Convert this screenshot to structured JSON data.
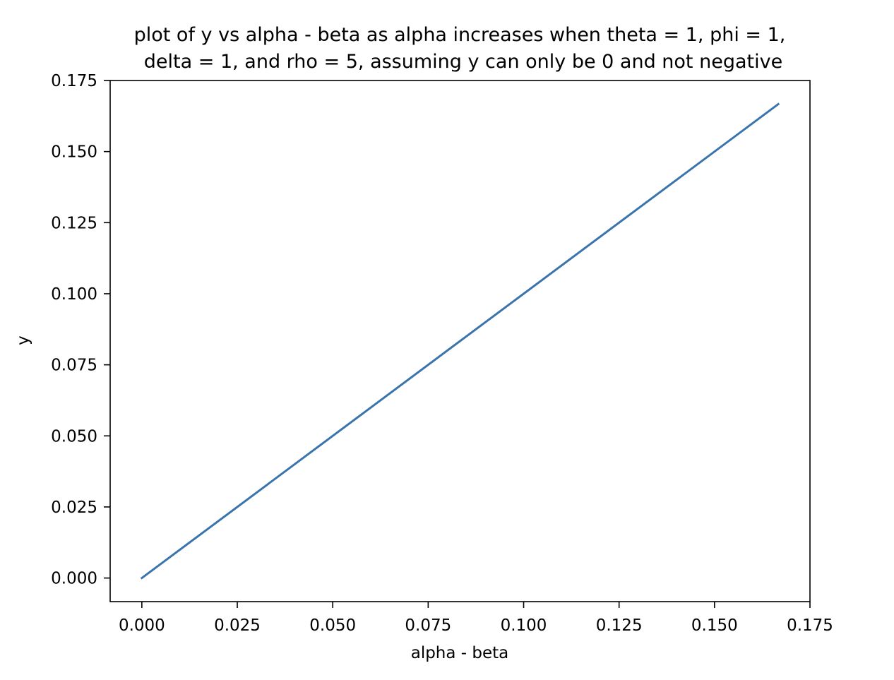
{
  "chart_data": {
    "type": "line",
    "title_lines": [
      "plot of y vs alpha - beta as alpha increases when theta = 1, phi = 1,",
      "delta = 1, and rho = 5, assuming y can only be 0 and not negative"
    ],
    "xlabel": "alpha - beta",
    "ylabel": "y",
    "xlim": [
      -0.0083,
      0.175
    ],
    "ylim": [
      -0.0083,
      0.175
    ],
    "x_ticks": [
      0.0,
      0.025,
      0.05,
      0.075,
      0.1,
      0.125,
      0.15,
      0.175
    ],
    "x_tick_labels": [
      "0.000",
      "0.025",
      "0.050",
      "0.075",
      "0.100",
      "0.125",
      "0.150",
      "0.175"
    ],
    "y_ticks": [
      0.0,
      0.025,
      0.05,
      0.075,
      0.1,
      0.125,
      0.15,
      0.175
    ],
    "y_tick_labels": [
      "0.000",
      "0.025",
      "0.050",
      "0.075",
      "0.100",
      "0.125",
      "0.150",
      "0.175"
    ],
    "grid": false,
    "series": [
      {
        "color": "#3a74ad",
        "x": [
          0.0,
          0.1667
        ],
        "y": [
          0.0,
          0.1667
        ]
      }
    ]
  }
}
